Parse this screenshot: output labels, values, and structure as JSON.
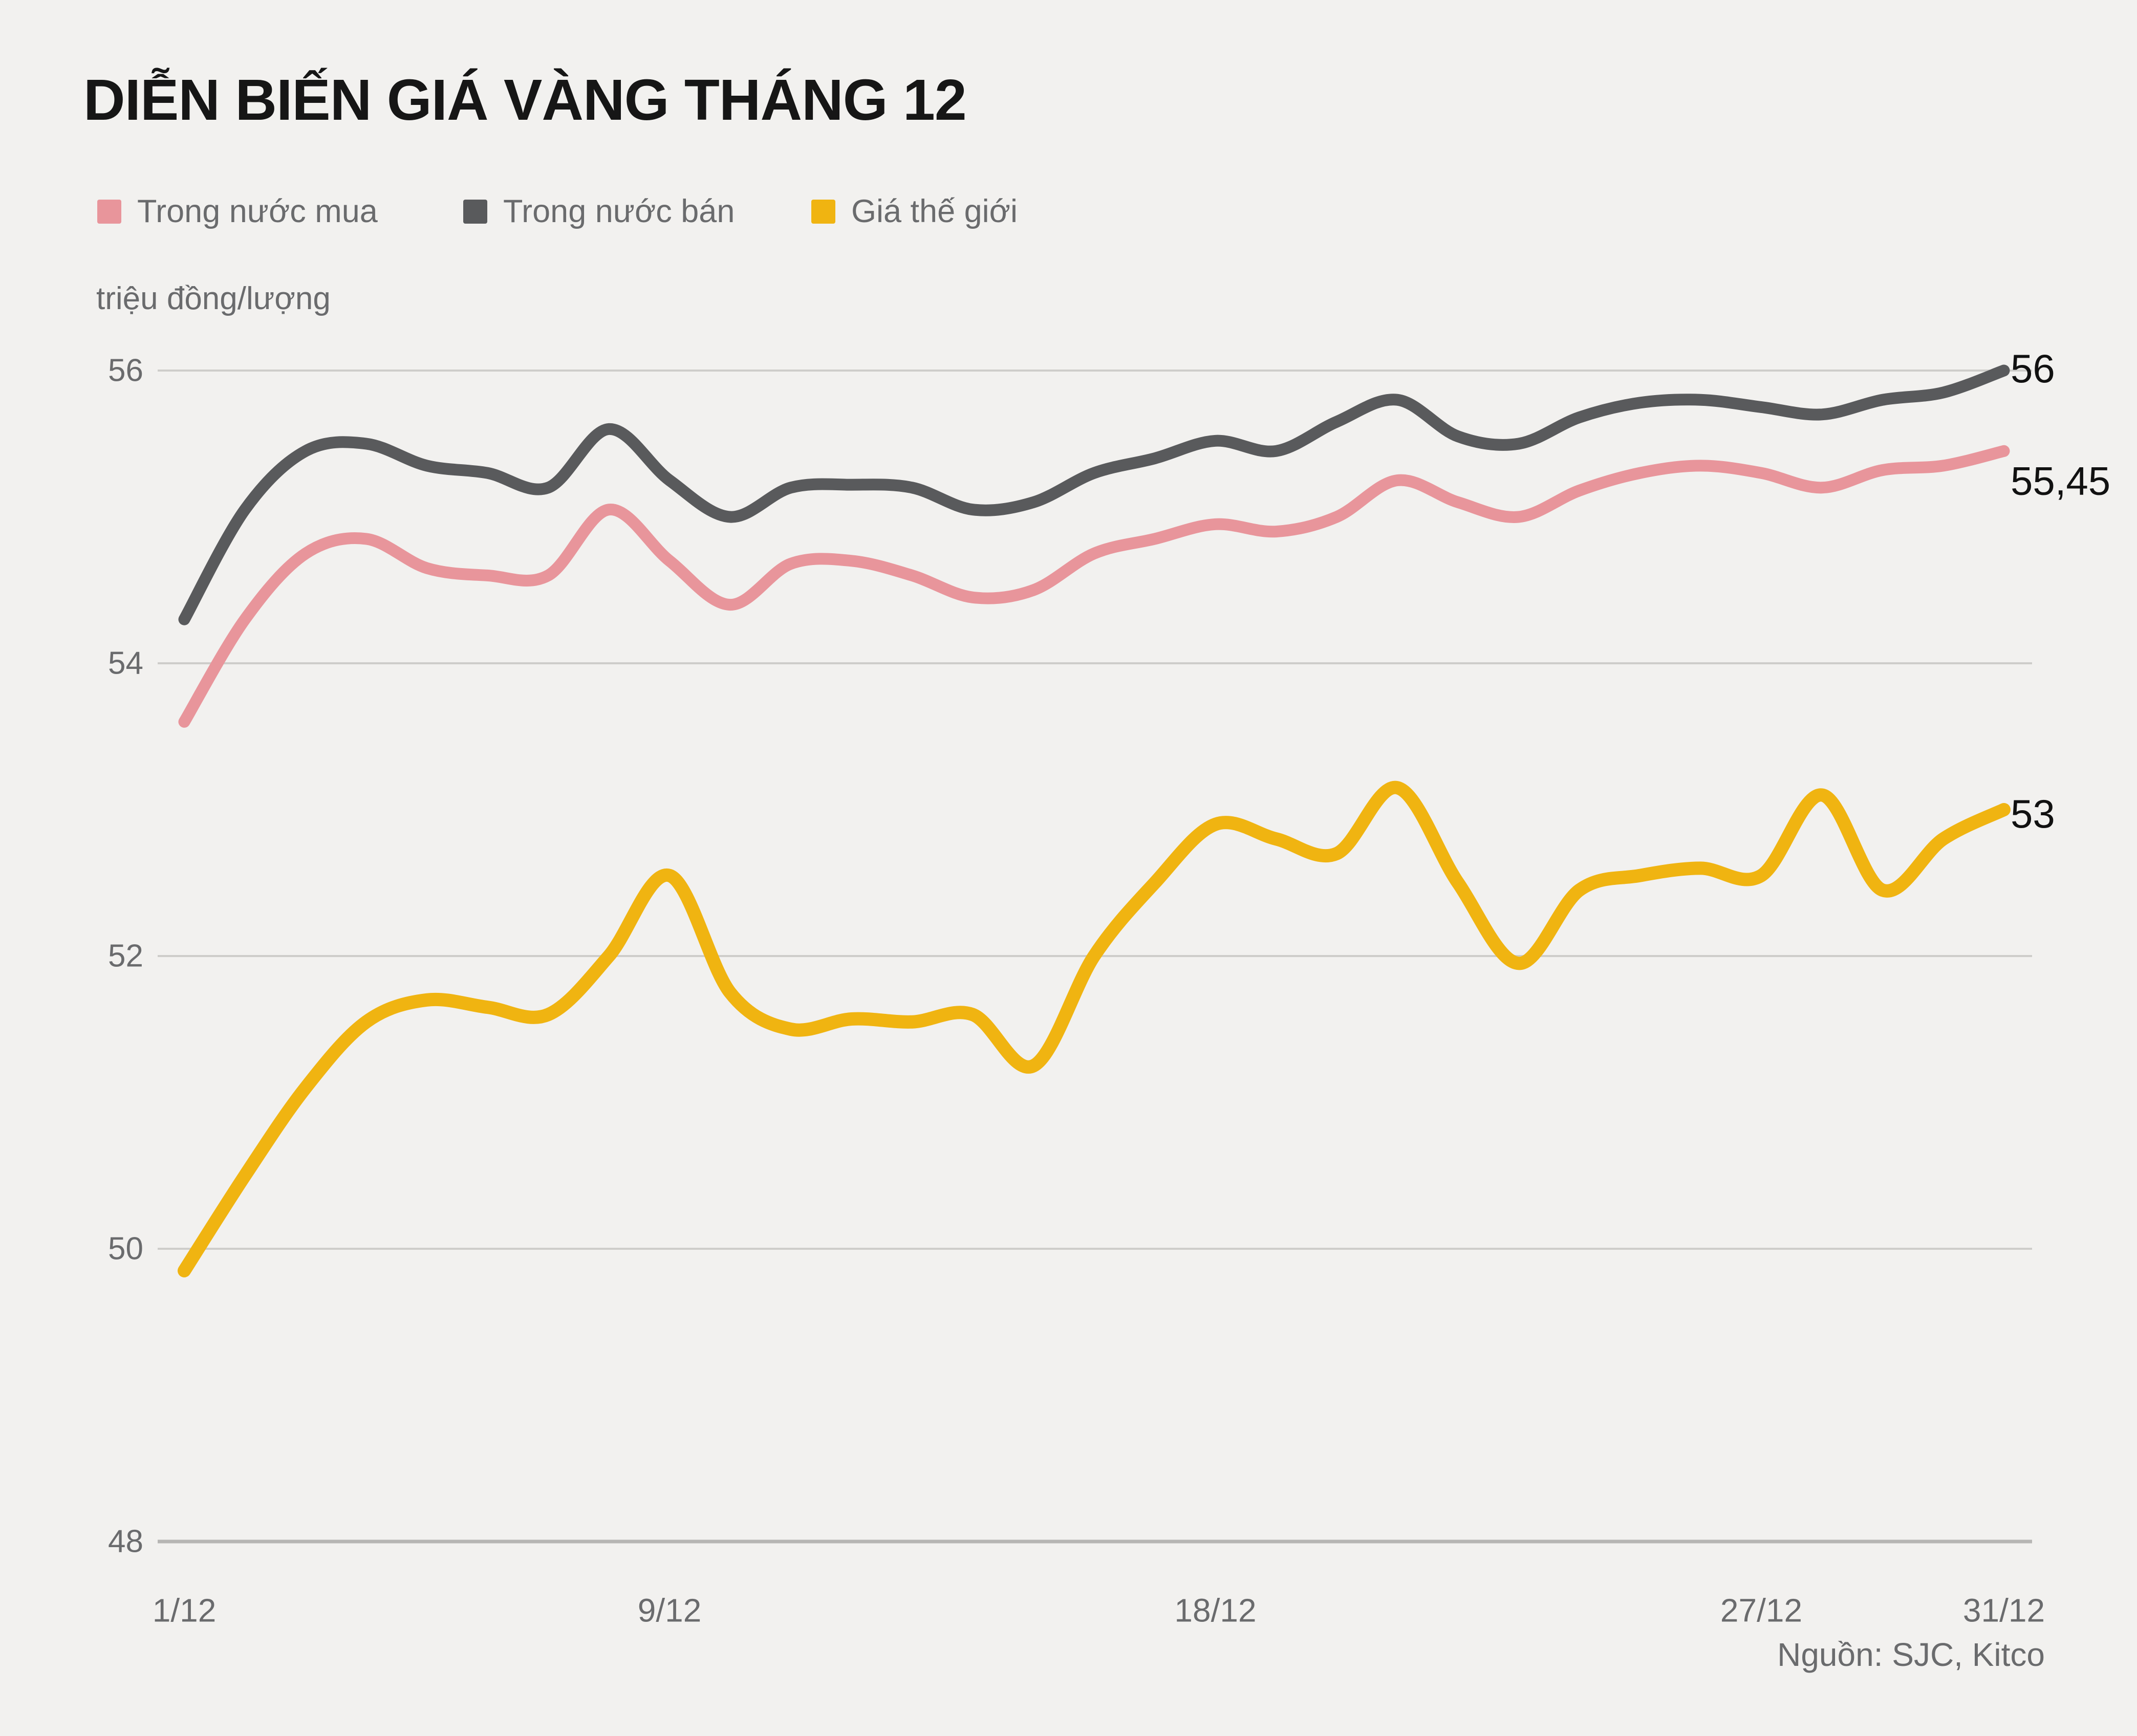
{
  "chart_data": {
    "type": "line",
    "title": "DIỄN BIẾN GIÁ VÀNG THÁNG 12",
    "unit_label": "triệu đồng/lượng",
    "source": "Nguồn: SJC, Kitco",
    "x_axis": {
      "ticks": [
        {
          "day": 1,
          "label": "1/12"
        },
        {
          "day": 9,
          "label": "9/12"
        },
        {
          "day": 18,
          "label": "18/12"
        },
        {
          "day": 27,
          "label": "27/12"
        },
        {
          "day": 31,
          "label": "31/12"
        }
      ],
      "range_days": [
        1,
        31
      ]
    },
    "y_axis": {
      "ticks": [
        {
          "label": "56",
          "value": 56,
          "baseline": false
        },
        {
          "label": "54",
          "value": 54,
          "baseline": false
        },
        {
          "label": "52",
          "value": 52,
          "baseline": false
        },
        {
          "label": "50",
          "value": 50,
          "baseline": false
        },
        {
          "label": "48",
          "value": 48,
          "baseline": true
        }
      ],
      "range": [
        48,
        56
      ]
    },
    "legend_position": "top-left",
    "grid": "horizontal",
    "series": [
      {
        "name": "Trong nước mua",
        "color": "#e8959b",
        "end_label": "55,45",
        "values": [
          53.6,
          54.3,
          54.75,
          54.85,
          54.65,
          54.6,
          54.6,
          55.05,
          54.7,
          54.4,
          54.68,
          54.7,
          54.6,
          54.45,
          54.5,
          54.75,
          54.85,
          54.95,
          54.9,
          55.0,
          55.25,
          55.1,
          55.0,
          55.18,
          55.3,
          55.35,
          55.3,
          55.2,
          55.32,
          55.35,
          55.45
        ]
      },
      {
        "name": "Trong nước bán",
        "color": "#595a5c",
        "end_label": "56",
        "values": [
          54.3,
          55.05,
          55.45,
          55.5,
          55.35,
          55.3,
          55.2,
          55.6,
          55.25,
          55.0,
          55.2,
          55.22,
          55.2,
          55.05,
          55.1,
          55.3,
          55.4,
          55.52,
          55.45,
          55.65,
          55.8,
          55.55,
          55.5,
          55.68,
          55.78,
          55.8,
          55.75,
          55.7,
          55.8,
          55.85,
          56.0
        ]
      },
      {
        "name": "Giá thế giới",
        "color": "#f0b411",
        "end_label": "53",
        "values": [
          49.85,
          50.5,
          51.1,
          51.55,
          51.7,
          51.65,
          51.6,
          52.0,
          52.55,
          51.75,
          51.5,
          51.57,
          51.55,
          51.6,
          51.25,
          52.0,
          52.5,
          52.9,
          52.8,
          52.7,
          53.15,
          52.5,
          51.95,
          52.45,
          52.55,
          52.6,
          52.55,
          53.1,
          52.45,
          52.8,
          53.0
        ]
      }
    ],
    "colors": {
      "background": "#f2f1ef",
      "gridline": "#cecdca",
      "axis_line": "#b7b6b4",
      "tick_text": "#6a6b6d",
      "title_text": "#161616",
      "end_label_text": "#111111"
    }
  }
}
